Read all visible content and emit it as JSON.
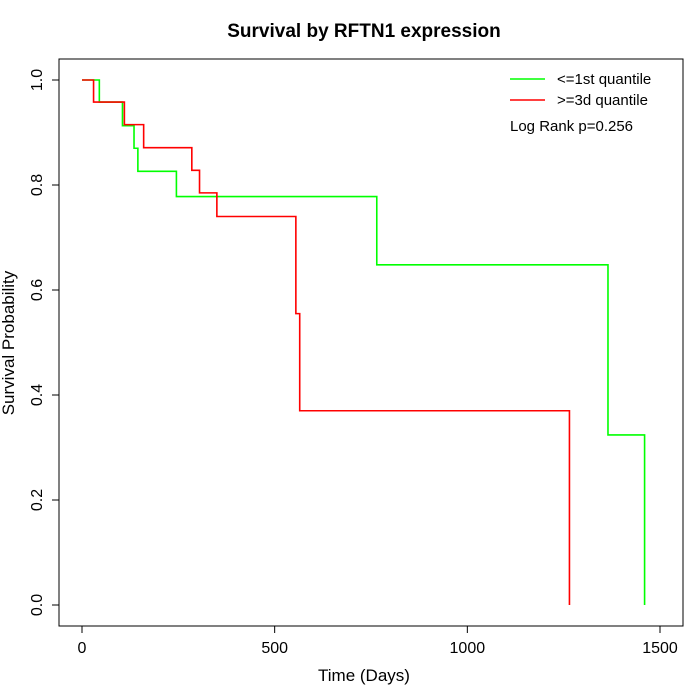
{
  "chart_data": {
    "type": "line",
    "step": true,
    "title": "Survival by RFTN1 expression",
    "xlabel": "Time (Days)",
    "ylabel": "Survival Probability",
    "xlim": [
      0,
      1500
    ],
    "ylim": [
      0,
      1
    ],
    "xticks": [
      0,
      500,
      1000,
      1500
    ],
    "xtick_labels": [
      "0",
      "500",
      "1000",
      "1500"
    ],
    "yticks": [
      0,
      0.2,
      0.4,
      0.6,
      0.8,
      1
    ],
    "ytick_labels": [
      "0.0",
      "0.2",
      "0.4",
      "0.6",
      "0.8",
      "1.0"
    ],
    "grid": false,
    "legend_position": "top-right",
    "annotation": "Log Rank p=0.256",
    "series": [
      {
        "name": "<=1st quantile",
        "color": "#00ff00",
        "x": [
          0,
          45,
          105,
          135,
          145,
          245,
          765,
          1365,
          1460
        ],
        "y": [
          1.0,
          0.958,
          0.913,
          0.87,
          0.826,
          0.778,
          0.648,
          0.324,
          0.0
        ]
      },
      {
        "name": ">=3d quantile",
        "color": "#ff0000",
        "x": [
          0,
          30,
          110,
          160,
          285,
          305,
          350,
          555,
          565,
          1265
        ],
        "y": [
          1.0,
          0.958,
          0.915,
          0.871,
          0.828,
          0.785,
          0.74,
          0.555,
          0.37,
          0.0
        ]
      }
    ]
  }
}
